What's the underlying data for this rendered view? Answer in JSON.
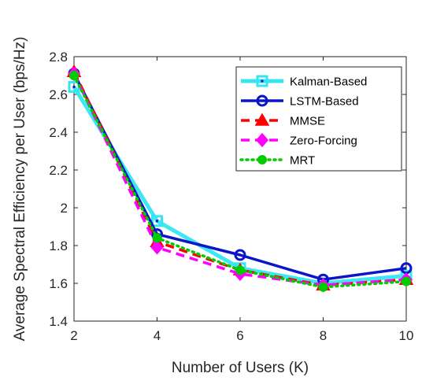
{
  "chart_data": {
    "type": "line",
    "xlabel": "Number of Users (K)",
    "ylabel": "Average Spectral Efficiency per User (bps/Hz)",
    "x": [
      2,
      4,
      6,
      8,
      10
    ],
    "xlim": [
      2,
      10
    ],
    "ylim": [
      1.4,
      2.8
    ],
    "xticks": [
      "2",
      "4",
      "6",
      "8",
      "10"
    ],
    "yticks": [
      "1.4",
      "1.6",
      "1.8",
      "2",
      "2.2",
      "2.4",
      "2.6",
      "2.8"
    ],
    "grid": false,
    "legend_position": "top-right",
    "series": [
      {
        "name": "Kalman-Based",
        "values": [
          2.64,
          1.93,
          1.68,
          1.6,
          1.64
        ],
        "color": "#33E6F2",
        "marker": "square",
        "line": "solid"
      },
      {
        "name": "LSTM-Based",
        "values": [
          2.71,
          1.86,
          1.75,
          1.62,
          1.68
        ],
        "color": "#0A14C8",
        "marker": "circle",
        "line": "solid"
      },
      {
        "name": "MMSE",
        "values": [
          2.72,
          1.82,
          1.67,
          1.59,
          1.62
        ],
        "color": "#FF0000",
        "marker": "triangle",
        "line": "dashed"
      },
      {
        "name": "Zero-Forcing",
        "values": [
          2.71,
          1.79,
          1.65,
          1.59,
          1.62
        ],
        "color": "#FF00FF",
        "marker": "diamond",
        "line": "dashed"
      },
      {
        "name": "MRT",
        "values": [
          2.7,
          1.84,
          1.67,
          1.58,
          1.61
        ],
        "color": "#00CC00",
        "marker": "circle-filled",
        "line": "dotted"
      }
    ]
  }
}
